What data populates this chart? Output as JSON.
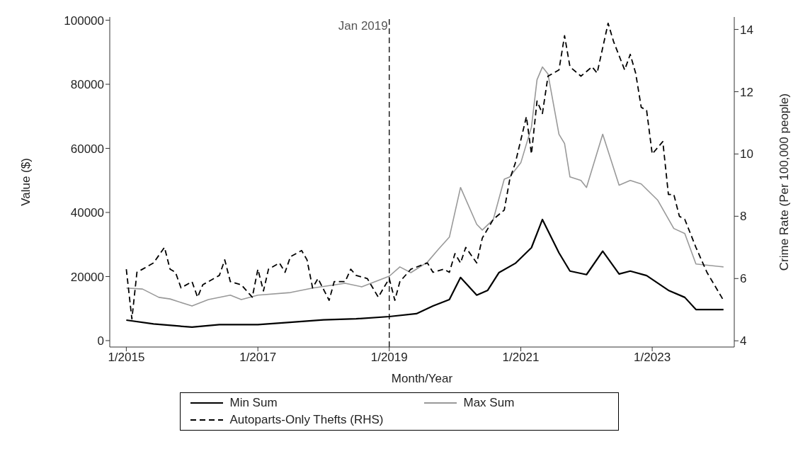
{
  "chart_data": {
    "type": "line",
    "xlabel": "Month/Year",
    "ylabel": "Value ($)",
    "y2label": "Crime Rate (Per 100,000 people)",
    "xlim": [
      "2014-10",
      "2024-04"
    ],
    "xticks": [
      {
        "value": "2015-01",
        "label": "1/2015"
      },
      {
        "value": "2017-01",
        "label": "1/2017"
      },
      {
        "value": "2019-01",
        "label": "1/2019"
      },
      {
        "value": "2021-01",
        "label": "1/2021"
      },
      {
        "value": "2023-01",
        "label": "1/2023"
      }
    ],
    "ylim": [
      -2000,
      101000
    ],
    "yticks": [
      0,
      20000,
      40000,
      60000,
      80000,
      100000
    ],
    "y2lim": [
      3.8,
      14.4
    ],
    "y2ticks": [
      4,
      6,
      8,
      10,
      12,
      14
    ],
    "grid": false,
    "legend": "bottom",
    "marker": "none",
    "ref_lines": [
      {
        "axis": "x",
        "value": "2019-01",
        "label": "Jan 2019",
        "line_style": "dashed",
        "color": "#000000"
      }
    ],
    "series": [
      {
        "name": "Min Sum",
        "color": "#000000",
        "line_style": "solid",
        "x": [
          "2015-01",
          "2015-06",
          "2016-01",
          "2016-06",
          "2017-01",
          "2017-06",
          "2018-01",
          "2018-07",
          "2019-01",
          "2019-06",
          "2019-09",
          "2019-12",
          "2020-02",
          "2020-05",
          "2020-07",
          "2020-09",
          "2020-12",
          "2021-03",
          "2021-05",
          "2021-08",
          "2021-10",
          "2022-01",
          "2022-04",
          "2022-07",
          "2022-09",
          "2022-12",
          "2023-04",
          "2023-07",
          "2023-09",
          "2024-02"
        ],
        "values": [
          6400,
          5200,
          4200,
          5000,
          5000,
          5600,
          6500,
          6800,
          7500,
          8400,
          10800,
          12800,
          19700,
          14200,
          15700,
          21200,
          24100,
          29000,
          37800,
          27400,
          21700,
          20600,
          27900,
          20800,
          21700,
          20300,
          15700,
          13500,
          9700,
          9700
        ]
      },
      {
        "name": "Max Sum",
        "color": "#999999",
        "line_style": "solid",
        "x": [
          "2015-01",
          "2015-04",
          "2015-07",
          "2015-09",
          "2016-01",
          "2016-04",
          "2016-08",
          "2016-10",
          "2017-01",
          "2017-07",
          "2017-11",
          "2018-05",
          "2018-08",
          "2019-01",
          "2019-03",
          "2019-05",
          "2019-08",
          "2019-10",
          "2019-12",
          "2020-02",
          "2020-05",
          "2020-06",
          "2020-08",
          "2020-10",
          "2020-11",
          "2021-01",
          "2021-03",
          "2021-04",
          "2021-05",
          "2021-06",
          "2021-08",
          "2021-09",
          "2021-10",
          "2021-12",
          "2022-01",
          "2022-04",
          "2022-07",
          "2022-09",
          "2022-11",
          "2023-02",
          "2023-05",
          "2023-07",
          "2023-09",
          "2024-02"
        ],
        "values": [
          16400,
          16100,
          13500,
          13000,
          10800,
          12800,
          14200,
          12800,
          14200,
          15000,
          16400,
          17900,
          16800,
          20100,
          23000,
          21200,
          24500,
          28500,
          32300,
          47800,
          36300,
          34500,
          37800,
          50400,
          51100,
          55500,
          66600,
          81400,
          85400,
          83200,
          64400,
          61500,
          51100,
          50000,
          47800,
          64400,
          48500,
          50000,
          48900,
          43800,
          35000,
          33400,
          23900,
          23000
        ]
      },
      {
        "name": "Autoparts-Only Thefts (RHS)",
        "color": "#000000",
        "line_style": "dashed",
        "axis": "y2",
        "x": [
          "2015-01",
          "2015-02",
          "2015-03",
          "2015-04",
          "2015-06",
          "2015-08",
          "2015-09",
          "2015-10",
          "2015-11",
          "2016-01",
          "2016-02",
          "2016-03",
          "2016-06",
          "2016-07",
          "2016-08",
          "2016-10",
          "2016-12",
          "2017-01",
          "2017-02",
          "2017-03",
          "2017-05",
          "2017-06",
          "2017-07",
          "2017-09",
          "2017-10",
          "2017-11",
          "2017-12",
          "2018-02",
          "2018-03",
          "2018-05",
          "2018-06",
          "2018-07",
          "2018-09",
          "2018-11",
          "2018-12",
          "2019-01",
          "2019-02",
          "2019-03",
          "2019-05",
          "2019-08",
          "2019-09",
          "2019-11",
          "2019-12",
          "2020-01",
          "2020-02",
          "2020-03",
          "2020-05",
          "2020-06",
          "2020-08",
          "2020-10",
          "2020-11",
          "2020-12",
          "2021-02",
          "2021-03",
          "2021-04",
          "2021-05",
          "2021-06",
          "2021-08",
          "2021-09",
          "2021-10",
          "2021-12",
          "2022-02",
          "2022-03",
          "2022-05",
          "2022-06",
          "2022-08",
          "2022-09",
          "2022-10",
          "2022-11",
          "2022-12",
          "2023-01",
          "2023-03",
          "2023-04",
          "2023-05",
          "2023-06",
          "2023-07",
          "2023-09",
          "2023-11",
          "2024-02"
        ],
        "values": [
          6.3,
          4.7,
          6.2,
          6.3,
          6.5,
          7.0,
          6.3,
          6.2,
          5.7,
          5.9,
          5.4,
          5.8,
          6.1,
          6.6,
          5.9,
          5.8,
          5.4,
          6.3,
          5.6,
          6.3,
          6.5,
          6.2,
          6.7,
          6.9,
          6.6,
          5.7,
          6.0,
          5.3,
          5.9,
          5.9,
          6.3,
          6.1,
          6.0,
          5.4,
          5.7,
          6.0,
          5.3,
          5.9,
          6.3,
          6.5,
          6.2,
          6.3,
          6.2,
          6.8,
          6.5,
          7.0,
          6.5,
          7.3,
          7.9,
          8.2,
          9.2,
          9.7,
          11.2,
          10.0,
          11.7,
          11.3,
          12.5,
          12.7,
          13.8,
          12.8,
          12.5,
          12.8,
          12.6,
          14.2,
          13.6,
          12.7,
          13.2,
          12.6,
          11.5,
          11.4,
          10.0,
          10.4,
          8.7,
          8.7,
          8.0,
          7.9,
          7.0,
          6.2,
          5.3
        ]
      }
    ]
  }
}
